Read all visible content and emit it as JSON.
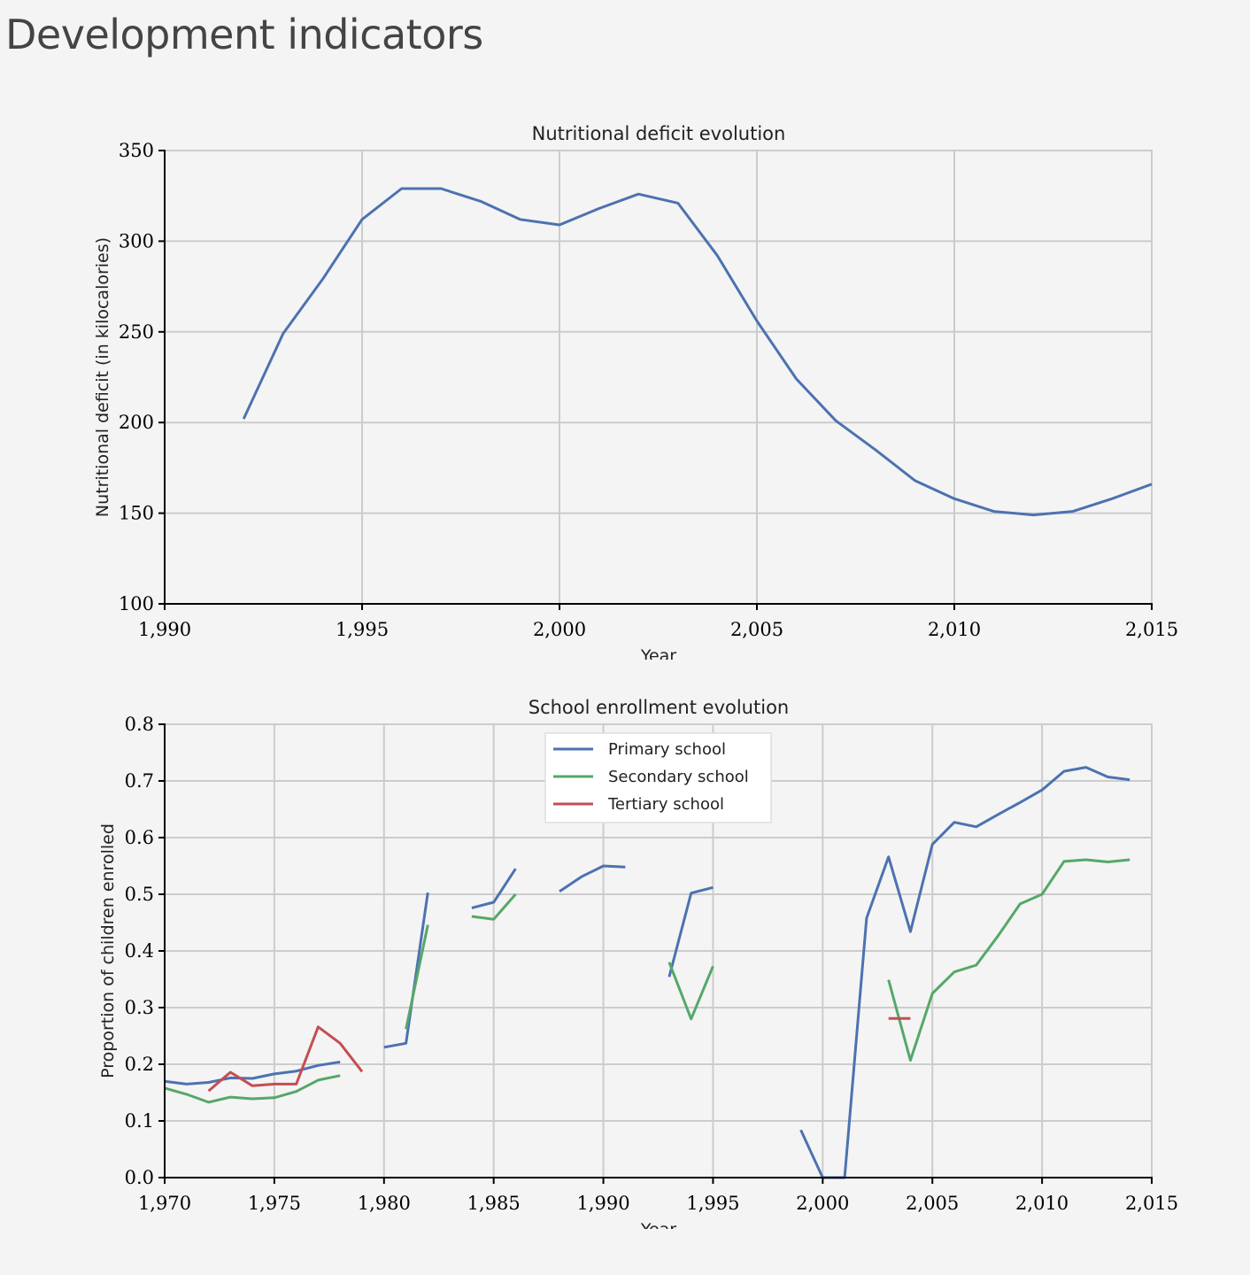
{
  "page": {
    "title": "Development indicators"
  },
  "chart_data": [
    {
      "type": "line",
      "title": "Nutritional deficit evolution",
      "xlabel": "Year",
      "ylabel": "Nutritional deficit (in kilocalories)",
      "xlim": [
        1990,
        2015
      ],
      "ylim": [
        100,
        350
      ],
      "xticks": [
        1990,
        1995,
        2000,
        2005,
        2010,
        2015
      ],
      "xtick_labels": [
        "1,990",
        "1,995",
        "2,000",
        "2,005",
        "2,010",
        "2,015"
      ],
      "yticks": [
        100,
        150,
        200,
        250,
        300,
        350
      ],
      "ytick_labels": [
        "100",
        "150",
        "200",
        "250",
        "300",
        "350"
      ],
      "grid": true,
      "series": [
        {
          "color": "#4c72b0",
          "x": [
            1992,
            1993,
            1994,
            1995,
            1996,
            1997,
            1998,
            1999,
            2000,
            2001,
            2002,
            2003,
            2004,
            2005,
            2006,
            2007,
            2008,
            2009,
            2010,
            2011,
            2012,
            2013,
            2014,
            2015
          ],
          "y": [
            202,
            249,
            279,
            312,
            329,
            329,
            322,
            312,
            309,
            318,
            326,
            321,
            292,
            256,
            224,
            201,
            185,
            168,
            158,
            151,
            149,
            151,
            158,
            166
          ]
        }
      ]
    },
    {
      "type": "line",
      "title": "School enrollment evolution",
      "xlabel": "Year",
      "ylabel": "Proportion of children enrolled",
      "xlim": [
        1970,
        2015
      ],
      "ylim": [
        0,
        0.8
      ],
      "xticks": [
        1970,
        1975,
        1980,
        1985,
        1990,
        1995,
        2000,
        2005,
        2010,
        2015
      ],
      "xtick_labels": [
        "1,970",
        "1,975",
        "1,980",
        "1,985",
        "1,990",
        "1,995",
        "2,000",
        "2,005",
        "2,010",
        "2,015"
      ],
      "yticks": [
        0,
        0.1,
        0.2,
        0.3,
        0.4,
        0.5,
        0.6,
        0.7,
        0.8
      ],
      "ytick_labels": [
        "0.0",
        "0.1",
        "0.2",
        "0.3",
        "0.4",
        "0.5",
        "0.6",
        "0.7",
        "0.8"
      ],
      "grid": true,
      "legend": "top-center",
      "series": [
        {
          "name": "Primary school",
          "color": "#4c72b0",
          "x": [
            1970,
            1971,
            1972,
            1973,
            1974,
            1975,
            1976,
            1977,
            1978,
            1979,
            1980,
            1981,
            1982,
            1983,
            1984,
            1985,
            1986,
            1987,
            1988,
            1989,
            1990,
            1991,
            1992,
            1993,
            1994,
            1995,
            1996,
            1997,
            1998,
            1999,
            2000,
            2001,
            2002,
            2003,
            2004,
            2005,
            2006,
            2007,
            2008,
            2009,
            2010,
            2011,
            2012,
            2013,
            2014
          ],
          "y": [
            0.17,
            0.165,
            0.168,
            0.176,
            0.175,
            0.183,
            0.188,
            0.198,
            0.204,
            null,
            0.23,
            0.237,
            0.503,
            null,
            0.476,
            0.486,
            0.545,
            null,
            0.505,
            0.531,
            0.55,
            0.548,
            null,
            0.354,
            0.502,
            0.512,
            null,
            null,
            null,
            0.084,
            0.0,
            0.0,
            0.458,
            0.566,
            0.434,
            0.588,
            0.627,
            0.619,
            0.641,
            0.662,
            0.684,
            0.717,
            0.724,
            0.707,
            0.702
          ]
        },
        {
          "name": "Secondary school",
          "color": "#55a868",
          "x": [
            1970,
            1971,
            1972,
            1973,
            1974,
            1975,
            1976,
            1977,
            1978,
            1979,
            1980,
            1981,
            1982,
            1983,
            1984,
            1985,
            1986,
            1987,
            1988,
            1989,
            1990,
            1991,
            1992,
            1993,
            1994,
            1995,
            1996,
            1997,
            1998,
            1999,
            2000,
            2001,
            2002,
            2003,
            2004,
            2005,
            2006,
            2007,
            2008,
            2009,
            2010,
            2011,
            2012,
            2013,
            2014
          ],
          "y": [
            0.158,
            0.147,
            0.133,
            0.142,
            0.139,
            0.141,
            0.152,
            0.172,
            0.18,
            null,
            null,
            0.262,
            0.446,
            null,
            0.461,
            0.456,
            0.5,
            null,
            null,
            null,
            null,
            null,
            null,
            0.38,
            0.28,
            0.373,
            null,
            null,
            null,
            null,
            null,
            null,
            null,
            0.349,
            0.207,
            0.325,
            0.363,
            0.375,
            0.427,
            0.483,
            0.5,
            0.558,
            0.561,
            0.557,
            0.561
          ]
        },
        {
          "name": "Tertiary school",
          "color": "#c44e52",
          "x": [
            1970,
            1971,
            1972,
            1973,
            1974,
            1975,
            1976,
            1977,
            1978,
            1979,
            1980,
            1981,
            1982,
            1983,
            1984,
            1985,
            1986,
            1987,
            1988,
            1989,
            1990,
            1991,
            1992,
            1993,
            1994,
            1995,
            1996,
            1997,
            1998,
            1999,
            2000,
            2001,
            2002,
            2003,
            2004,
            2005,
            2006,
            2007,
            2008,
            2009,
            2010,
            2011,
            2012,
            2013,
            2014
          ],
          "y": [
            null,
            null,
            0.153,
            0.186,
            0.162,
            0.165,
            0.165,
            0.266,
            0.237,
            0.187,
            null,
            null,
            null,
            null,
            null,
            null,
            null,
            null,
            null,
            null,
            null,
            null,
            null,
            null,
            null,
            null,
            null,
            null,
            null,
            null,
            null,
            null,
            null,
            0.281,
            0.281,
            null,
            null,
            null,
            null,
            null,
            null,
            null,
            null,
            null,
            null
          ]
        }
      ]
    }
  ]
}
